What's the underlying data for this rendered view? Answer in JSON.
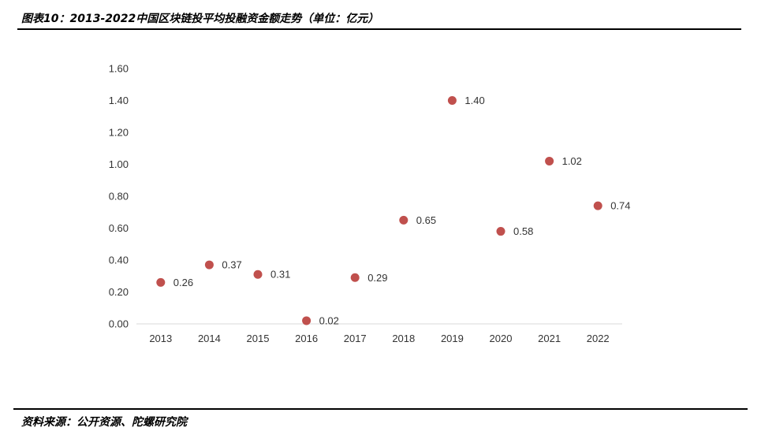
{
  "figure": {
    "title": "图表10：2013-2022中国区块链投平均投融资金额走势（单位：亿元）",
    "source": "资料来源：公开资源、陀螺研究院"
  },
  "chart_data": {
    "type": "scatter",
    "categories": [
      "2013",
      "2014",
      "2015",
      "2016",
      "2017",
      "2018",
      "2019",
      "2020",
      "2021",
      "2022"
    ],
    "values": [
      0.26,
      0.37,
      0.31,
      0.02,
      0.29,
      0.65,
      1.4,
      0.58,
      1.02,
      0.74
    ],
    "data_labels": [
      "0.26",
      "0.37",
      "0.31",
      "0.02",
      "0.29",
      "0.65",
      "1.40",
      "0.58",
      "1.02",
      "0.74"
    ],
    "y_ticks": [
      "0.00",
      "0.20",
      "0.40",
      "0.60",
      "0.80",
      "1.00",
      "1.20",
      "1.40",
      "1.60"
    ],
    "ylim": [
      0,
      1.6
    ],
    "grid": false,
    "legend": "none",
    "marker_color": "#c0504d",
    "axis_color": "#d9d9d9"
  }
}
